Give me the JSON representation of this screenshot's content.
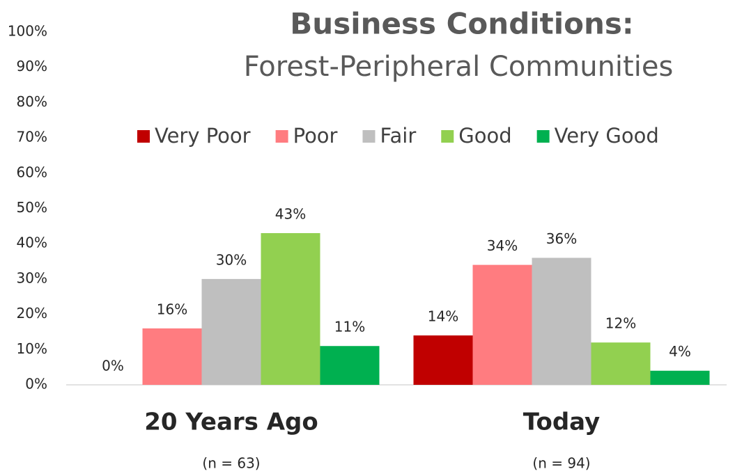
{
  "chart_data": {
    "type": "bar",
    "title": "Business Conditions:",
    "subtitle": "Forest-Peripheral Communities",
    "categories": [
      "20 Years Ago",
      "Today"
    ],
    "category_subtitles": [
      "(n = 63)",
      "(n = 94)"
    ],
    "series": [
      {
        "name": "Very Poor",
        "color": "#c00000",
        "values": [
          0,
          14
        ],
        "value_labels": [
          "0%",
          "14%"
        ]
      },
      {
        "name": "Poor",
        "color": "#ff7c80",
        "values": [
          16,
          34
        ],
        "value_labels": [
          "16%",
          "34%"
        ]
      },
      {
        "name": "Fair",
        "color": "#bfbfbf",
        "values": [
          30,
          36
        ],
        "value_labels": [
          "30%",
          "36%"
        ]
      },
      {
        "name": "Good",
        "color": "#92d050",
        "values": [
          43,
          12
        ],
        "value_labels": [
          "43%",
          "12%"
        ]
      },
      {
        "name": "Very Good",
        "color": "#00b050",
        "values": [
          11,
          4
        ],
        "value_labels": [
          "11%",
          "4%"
        ]
      }
    ],
    "ylim": [
      0,
      100
    ],
    "yticks": [
      {
        "value": 0,
        "label": "0%"
      },
      {
        "value": 10,
        "label": "10%"
      },
      {
        "value": 20,
        "label": "20%"
      },
      {
        "value": 30,
        "label": "30%"
      },
      {
        "value": 40,
        "label": "40%"
      },
      {
        "value": 50,
        "label": "50%"
      },
      {
        "value": 60,
        "label": "60%"
      },
      {
        "value": 70,
        "label": "70%"
      },
      {
        "value": 80,
        "label": "80%"
      },
      {
        "value": 90,
        "label": "90%"
      },
      {
        "value": 100,
        "label": "100%"
      }
    ],
    "legend": "top",
    "grid": false
  }
}
